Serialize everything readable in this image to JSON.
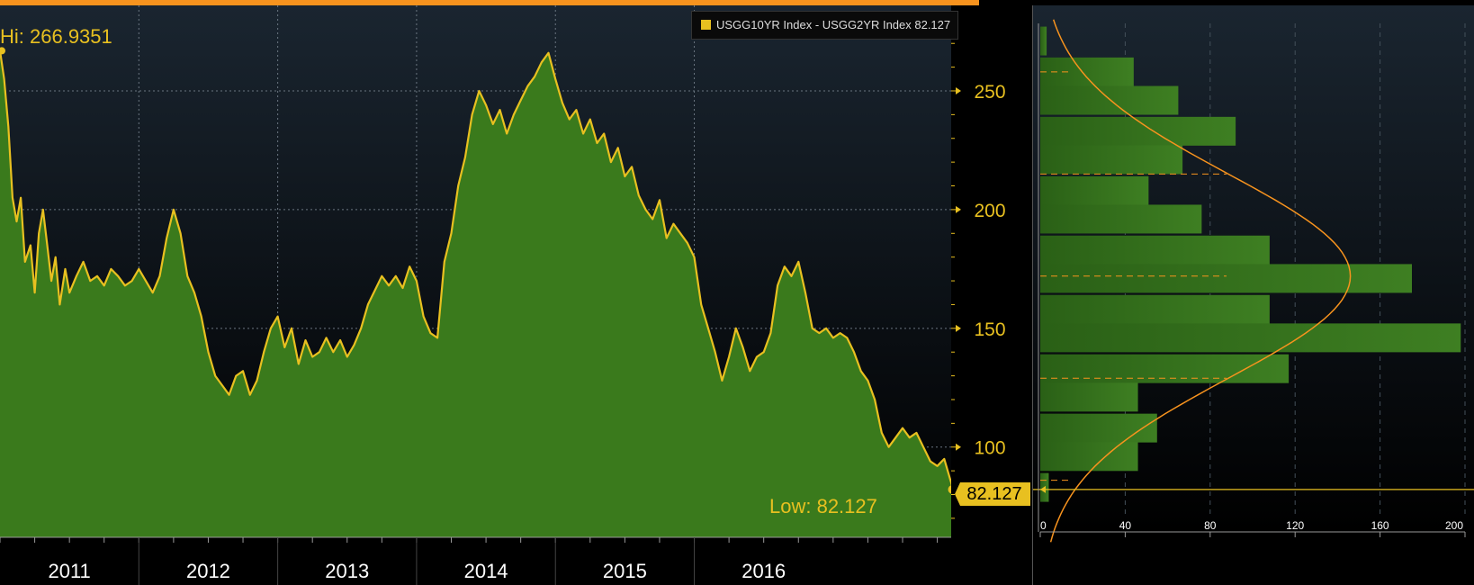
{
  "legend": {
    "label": "USGG10YR Index - USGG2YR Index 82.127",
    "color": "#e8c020"
  },
  "annotations": {
    "hi": "Hi: 266.9351",
    "low": "Low: 82.127",
    "last_value": "82.127"
  },
  "colors": {
    "line": "#e8c020",
    "area": "#3a7a1c",
    "background_top": "#1a2530",
    "background_bottom": "#000000",
    "axis_text": "#e8c020",
    "dist_curve": "#f7931e"
  },
  "chart_data": [
    {
      "type": "area",
      "series": [
        {
          "name": "USGG10YR Index - USGG2YR Index",
          "points": [
            [
              2011.0,
              266.9
            ],
            [
              2011.03,
              255
            ],
            [
              2011.06,
              235
            ],
            [
              2011.09,
              205
            ],
            [
              2011.12,
              195
            ],
            [
              2011.15,
              205
            ],
            [
              2011.18,
              178
            ],
            [
              2011.22,
              185
            ],
            [
              2011.25,
              165
            ],
            [
              2011.28,
              190
            ],
            [
              2011.31,
              200
            ],
            [
              2011.34,
              185
            ],
            [
              2011.37,
              170
            ],
            [
              2011.4,
              180
            ],
            [
              2011.43,
              160
            ],
            [
              2011.47,
              175
            ],
            [
              2011.5,
              165
            ],
            [
              2011.55,
              172
            ],
            [
              2011.6,
              178
            ],
            [
              2011.65,
              170
            ],
            [
              2011.7,
              172
            ],
            [
              2011.75,
              168
            ],
            [
              2011.8,
              175
            ],
            [
              2011.85,
              172
            ],
            [
              2011.9,
              168
            ],
            [
              2011.95,
              170
            ],
            [
              2012.0,
              175
            ],
            [
              2012.05,
              170
            ],
            [
              2012.1,
              165
            ],
            [
              2012.15,
              172
            ],
            [
              2012.2,
              188
            ],
            [
              2012.25,
              200
            ],
            [
              2012.3,
              190
            ],
            [
              2012.35,
              172
            ],
            [
              2012.4,
              165
            ],
            [
              2012.45,
              155
            ],
            [
              2012.5,
              140
            ],
            [
              2012.55,
              130
            ],
            [
              2012.6,
              126
            ],
            [
              2012.65,
              122
            ],
            [
              2012.7,
              130
            ],
            [
              2012.75,
              132
            ],
            [
              2012.8,
              122
            ],
            [
              2012.85,
              128
            ],
            [
              2012.9,
              140
            ],
            [
              2012.95,
              150
            ],
            [
              2013.0,
              155
            ],
            [
              2013.05,
              142
            ],
            [
              2013.1,
              150
            ],
            [
              2013.15,
              135
            ],
            [
              2013.2,
              145
            ],
            [
              2013.25,
              138
            ],
            [
              2013.3,
              140
            ],
            [
              2013.35,
              146
            ],
            [
              2013.4,
              140
            ],
            [
              2013.45,
              145
            ],
            [
              2013.5,
              138
            ],
            [
              2013.55,
              143
            ],
            [
              2013.6,
              150
            ],
            [
              2013.65,
              160
            ],
            [
              2013.7,
              166
            ],
            [
              2013.75,
              172
            ],
            [
              2013.8,
              168
            ],
            [
              2013.85,
              172
            ],
            [
              2013.9,
              167
            ],
            [
              2013.95,
              176
            ],
            [
              2014.0,
              170
            ],
            [
              2014.05,
              155
            ],
            [
              2014.1,
              148
            ],
            [
              2014.15,
              146
            ],
            [
              2014.2,
              178
            ],
            [
              2014.25,
              190
            ],
            [
              2014.3,
              210
            ],
            [
              2014.35,
              222
            ],
            [
              2014.4,
              240
            ],
            [
              2014.45,
              250
            ],
            [
              2014.5,
              244
            ],
            [
              2014.55,
              236
            ],
            [
              2014.6,
              242
            ],
            [
              2014.65,
              232
            ],
            [
              2014.7,
              240
            ],
            [
              2014.75,
              246
            ],
            [
              2014.8,
              252
            ],
            [
              2014.85,
              256
            ],
            [
              2014.9,
              262
            ],
            [
              2014.95,
              266
            ],
            [
              2015.0,
              255
            ],
            [
              2015.05,
              245
            ],
            [
              2015.1,
              238
            ],
            [
              2015.15,
              242
            ],
            [
              2015.2,
              232
            ],
            [
              2015.25,
              238
            ],
            [
              2015.3,
              228
            ],
            [
              2015.35,
              232
            ],
            [
              2015.4,
              220
            ],
            [
              2015.45,
              226
            ],
            [
              2015.5,
              214
            ],
            [
              2015.55,
              218
            ],
            [
              2015.6,
              206
            ],
            [
              2015.65,
              200
            ],
            [
              2015.7,
              196
            ],
            [
              2015.75,
              204
            ],
            [
              2015.8,
              188
            ],
            [
              2015.85,
              194
            ],
            [
              2015.9,
              190
            ],
            [
              2015.95,
              186
            ],
            [
              2016.0,
              180
            ],
            [
              2016.05,
              160
            ],
            [
              2016.1,
              150
            ],
            [
              2016.15,
              140
            ],
            [
              2016.2,
              128
            ],
            [
              2016.25,
              138
            ],
            [
              2016.3,
              150
            ],
            [
              2016.35,
              142
            ],
            [
              2016.4,
              132
            ],
            [
              2016.45,
              138
            ],
            [
              2016.5,
              140
            ],
            [
              2016.55,
              148
            ],
            [
              2016.6,
              168
            ],
            [
              2016.65,
              176
            ],
            [
              2016.7,
              172
            ],
            [
              2016.75,
              178
            ],
            [
              2016.8,
              165
            ],
            [
              2016.85,
              150
            ],
            [
              2016.9,
              148
            ],
            [
              2016.95,
              150
            ],
            [
              2017.0,
              146
            ],
            [
              2017.05,
              148
            ],
            [
              2017.1,
              146
            ],
            [
              2017.15,
              140
            ],
            [
              2017.2,
              132
            ],
            [
              2017.25,
              128
            ],
            [
              2017.3,
              120
            ],
            [
              2017.35,
              106
            ],
            [
              2017.4,
              100
            ],
            [
              2017.45,
              104
            ],
            [
              2017.5,
              108
            ],
            [
              2017.55,
              104
            ],
            [
              2017.6,
              106
            ],
            [
              2017.65,
              100
            ],
            [
              2017.7,
              94
            ],
            [
              2017.75,
              92
            ],
            [
              2017.8,
              95
            ],
            [
              2017.85,
              85
            ],
            [
              2017.86,
              82.127
            ]
          ]
        }
      ],
      "xlim": [
        2011.0,
        2017.85
      ],
      "ylim": [
        62,
        286
      ],
      "x_tick_labels": [
        "2011",
        "2012",
        "2013",
        "2014",
        "2015",
        "2016"
      ],
      "y_ticks": [
        100,
        150,
        200,
        250
      ],
      "grid": true,
      "legend_position": "top-right"
    },
    {
      "type": "bar",
      "orientation": "horizontal",
      "bins": [
        {
          "y": 271,
          "count": 3
        },
        {
          "y": 258,
          "count": 44
        },
        {
          "y": 246,
          "count": 65
        },
        {
          "y": 233,
          "count": 92
        },
        {
          "y": 221,
          "count": 67
        },
        {
          "y": 208,
          "count": 51
        },
        {
          "y": 196,
          "count": 76
        },
        {
          "y": 183,
          "count": 108
        },
        {
          "y": 171,
          "count": 175
        },
        {
          "y": 158,
          "count": 108
        },
        {
          "y": 146,
          "count": 198
        },
        {
          "y": 133,
          "count": 117
        },
        {
          "y": 121,
          "count": 46
        },
        {
          "y": 108,
          "count": 55
        },
        {
          "y": 96,
          "count": 46
        },
        {
          "y": 83,
          "count": 4
        }
      ],
      "x_ticks": [
        0,
        40,
        80,
        120,
        160,
        200
      ],
      "xlim": [
        0,
        200
      ],
      "normal_fit_peak_y": 172,
      "normal_fit_peak_count": 146,
      "normal_fit_sd": 43,
      "mean_line": 172,
      "sd_lines": [
        215,
        129
      ],
      "two_sd_lines": [
        258,
        86
      ]
    }
  ]
}
